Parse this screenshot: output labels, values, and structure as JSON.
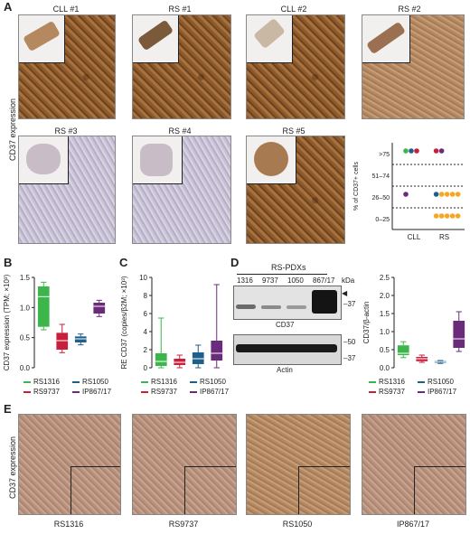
{
  "panel_letters": {
    "a": "A",
    "b": "B",
    "c": "C",
    "d": "D",
    "e": "E"
  },
  "panel_a": {
    "y_label": "CD37 expression",
    "tiles": [
      {
        "title": "CLL #1",
        "stain": "brown"
      },
      {
        "title": "RS #1",
        "stain": "brown"
      },
      {
        "title": "CLL #2",
        "stain": "brown"
      },
      {
        "title": "RS #2",
        "stain": "tan"
      },
      {
        "title": "RS #3",
        "stain": "purple"
      },
      {
        "title": "RS #4",
        "stain": "purple"
      },
      {
        "title": "RS #5",
        "stain": "brown"
      }
    ],
    "dot_plot": {
      "y_label": "% of CD37+ cells",
      "y_ticks": [
        ">75",
        "51–74",
        "26–50",
        "0–25"
      ],
      "x_ticks": [
        "CLL",
        "RS"
      ]
    }
  },
  "panel_b": {
    "y_label": "CD37 expression (TPM; ×10³)",
    "y_ticks": [
      "0.0",
      "0.5",
      "1.0",
      "1.5"
    ]
  },
  "panel_c": {
    "y_label": "RE CD37 (copies/β2M; ×10³)",
    "y_ticks": [
      "0",
      "2",
      "4",
      "6",
      "8",
      "10"
    ]
  },
  "panel_d": {
    "blot_title": "RS-PDXs",
    "lanes": [
      "1316",
      "9737",
      "1050",
      "867/17"
    ],
    "kda_label": "kDa",
    "markers_top": [
      "37"
    ],
    "markers_bottom": [
      "50",
      "37"
    ],
    "band_cd37": "CD37",
    "band_actin": "Actin",
    "y_label": "CD37/β-actin",
    "y_ticks": [
      "0.0",
      "0.5",
      "1.0",
      "1.5",
      "2.0",
      "2.5"
    ]
  },
  "legend": {
    "items": [
      {
        "label": "RS1316",
        "color": "#3cb54a"
      },
      {
        "label": "RS1050",
        "color": "#1f5f8b"
      },
      {
        "label": "RS9737",
        "color": "#c8203c"
      },
      {
        "label": "IP867/17",
        "color": "#6a2c7a"
      }
    ]
  },
  "panel_e": {
    "y_label": "CD37 expression",
    "tiles": [
      {
        "caption": "RS1316"
      },
      {
        "caption": "RS9737"
      },
      {
        "caption": "RS1050"
      },
      {
        "caption": "IP867/17"
      }
    ]
  },
  "chart_data": [
    {
      "type": "scatter",
      "name": "dot plot",
      "x_categories": [
        "CLL",
        "RS"
      ],
      "y_categories": [
        "0–25",
        "26–50",
        "51–74",
        ">75"
      ],
      "points": [
        {
          "x": "CLL",
          "y": ">75",
          "color": "#3cb54a"
        },
        {
          "x": "CLL",
          "y": ">75",
          "color": "#1f5f8b"
        },
        {
          "x": "CLL",
          "y": ">75",
          "color": "#c8203c"
        },
        {
          "x": "CLL",
          "y": "26–50",
          "color": "#6a2c7a"
        },
        {
          "x": "RS",
          "y": ">75",
          "color": "#c8203c"
        },
        {
          "x": "RS",
          "y": ">75",
          "color": "#6a2c7a"
        },
        {
          "x": "RS",
          "y": "26–50",
          "color": "#1f5f8b"
        },
        {
          "x": "RS",
          "y": "26–50",
          "color": "#f5a623"
        },
        {
          "x": "RS",
          "y": "26–50",
          "color": "#f5a623"
        },
        {
          "x": "RS",
          "y": "26–50",
          "color": "#f5a623"
        },
        {
          "x": "RS",
          "y": "26–50",
          "color": "#f5a623"
        },
        {
          "x": "RS",
          "y": "0–25",
          "color": "#f5a623"
        },
        {
          "x": "RS",
          "y": "0–25",
          "color": "#f5a623"
        },
        {
          "x": "RS",
          "y": "0–25",
          "color": "#f5a623"
        },
        {
          "x": "RS",
          "y": "0–25",
          "color": "#f5a623"
        },
        {
          "x": "RS",
          "y": "0–25",
          "color": "#f5a623"
        }
      ]
    },
    {
      "type": "box",
      "name": "B",
      "ylim": [
        0,
        1.5
      ],
      "boxes": [
        {
          "label": "RS1316",
          "color": "#3cb54a",
          "min": 0.63,
          "q1": 0.68,
          "median": 1.18,
          "q3": 1.35,
          "max": 1.42
        },
        {
          "label": "RS9737",
          "color": "#c8203c",
          "min": 0.25,
          "q1": 0.3,
          "median": 0.45,
          "q3": 0.58,
          "max": 0.72
        },
        {
          "label": "RS1050",
          "color": "#1f5f8b",
          "min": 0.38,
          "q1": 0.42,
          "median": 0.48,
          "q3": 0.52,
          "max": 0.56
        },
        {
          "label": "IP867/17",
          "color": "#6a2c7a",
          "min": 0.85,
          "q1": 0.9,
          "median": 1.02,
          "q3": 1.08,
          "max": 1.12
        }
      ]
    },
    {
      "type": "box",
      "name": "C",
      "ylim": [
        0,
        10
      ],
      "boxes": [
        {
          "label": "RS1316",
          "color": "#3cb54a",
          "min": 0.0,
          "q1": 0.2,
          "median": 0.7,
          "q3": 1.6,
          "max": 5.5
        },
        {
          "label": "RS9737",
          "color": "#c8203c",
          "min": 0.0,
          "q1": 0.3,
          "median": 0.6,
          "q3": 1.0,
          "max": 1.4
        },
        {
          "label": "RS1050",
          "color": "#1f5f8b",
          "min": 0.0,
          "q1": 0.4,
          "median": 1.0,
          "q3": 1.7,
          "max": 2.5
        },
        {
          "label": "IP867/17",
          "color": "#6a2c7a",
          "min": 0.0,
          "q1": 0.8,
          "median": 1.6,
          "q3": 3.0,
          "max": 9.2
        }
      ]
    },
    {
      "type": "box",
      "name": "D",
      "ylim": [
        0,
        2.5
      ],
      "boxes": [
        {
          "label": "RS1316",
          "color": "#3cb54a",
          "min": 0.28,
          "q1": 0.35,
          "median": 0.4,
          "q3": 0.62,
          "max": 0.72
        },
        {
          "label": "RS9737",
          "color": "#c8203c",
          "min": 0.15,
          "q1": 0.18,
          "median": 0.25,
          "q3": 0.3,
          "max": 0.35
        },
        {
          "label": "RS1050",
          "color": "#1f5f8b",
          "min": 0.12,
          "q1": 0.14,
          "median": 0.17,
          "q3": 0.19,
          "max": 0.2
        },
        {
          "label": "IP867/17",
          "color": "#6a2c7a",
          "min": 0.45,
          "q1": 0.55,
          "median": 0.8,
          "q3": 1.3,
          "max": 1.55
        }
      ]
    }
  ]
}
